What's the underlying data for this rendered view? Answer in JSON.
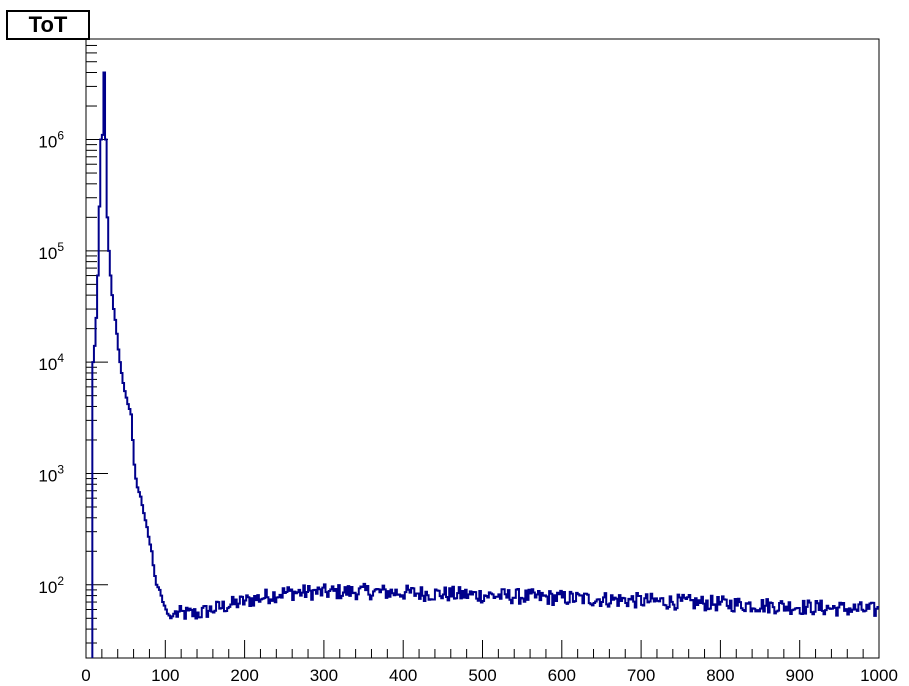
{
  "chart_data": {
    "type": "histogram",
    "title": "ToT",
    "xlabel": "",
    "ylabel": "",
    "xlim": [
      0,
      1000
    ],
    "ylim": [
      22,
      8000000
    ],
    "y_scale": "log",
    "x_ticks": [
      "0",
      "100",
      "200",
      "300",
      "400",
      "500",
      "600",
      "700",
      "800",
      "900",
      "1000"
    ],
    "y_ticks": [
      {
        "base": "10",
        "exp": "2",
        "value": 100
      },
      {
        "base": "10",
        "exp": "3",
        "value": 1000
      },
      {
        "base": "10",
        "exp": "4",
        "value": 10000
      },
      {
        "base": "10",
        "exp": "5",
        "value": 100000
      },
      {
        "base": "10",
        "exp": "6",
        "value": 1000000
      }
    ],
    "grid": false,
    "legend": "none",
    "line_color": "#00008b",
    "series": [
      {
        "bin_width": 2,
        "x": [
          8,
          10,
          12,
          14,
          16,
          18,
          20,
          22,
          24,
          26,
          28,
          30,
          32,
          34,
          36,
          38,
          40,
          42,
          44,
          46,
          48,
          50,
          52,
          54,
          56,
          58,
          60,
          62,
          64,
          66,
          68,
          70,
          72,
          74,
          76,
          78,
          80,
          82,
          84,
          86,
          88,
          90,
          92,
          94,
          96,
          98,
          100,
          102,
          104,
          106,
          108,
          110
        ],
        "values": [
          10000,
          14000,
          25000,
          60000,
          250000,
          1000000,
          1100000,
          4000000,
          1000000,
          200000,
          100000,
          60000,
          40000,
          30000,
          24000,
          18000,
          13000,
          10000,
          8000,
          6500,
          5500,
          4800,
          4200,
          3800,
          3400,
          2000,
          1200,
          900,
          750,
          680,
          620,
          520,
          440,
          380,
          330,
          270,
          230,
          200,
          150,
          120,
          100,
          95,
          90,
          80,
          70,
          65,
          60,
          55,
          53,
          50,
          52,
          55
        ]
      }
    ]
  }
}
